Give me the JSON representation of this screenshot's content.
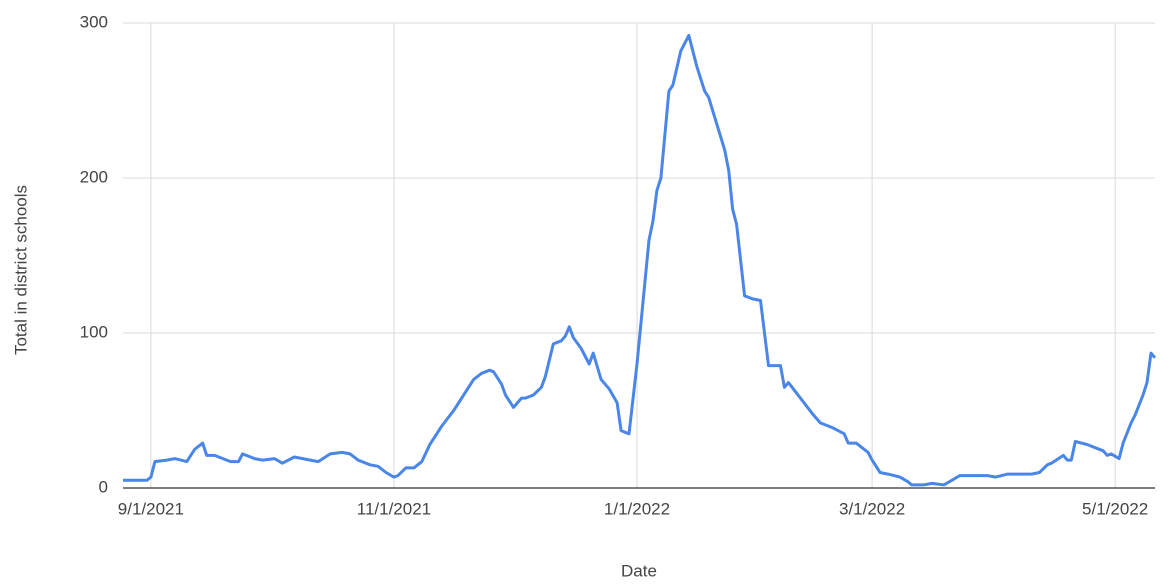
{
  "chart_data": {
    "type": "line",
    "xlabel": "Date",
    "ylabel": "Total in district schools",
    "x": [
      "8/25/2021",
      "8/31/2021",
      "9/1/2021",
      "9/2/2021",
      "9/5/2021",
      "9/7/2021",
      "9/10/2021",
      "9/12/2021",
      "9/14/2021",
      "9/15/2021",
      "9/17/2021",
      "9/21/2021",
      "9/23/2021",
      "9/24/2021",
      "9/27/2021",
      "9/29/2021",
      "10/2/2021",
      "10/4/2021",
      "10/7/2021",
      "10/11/2021",
      "10/13/2021",
      "10/16/2021",
      "10/19/2021",
      "10/21/2021",
      "10/23/2021",
      "10/26/2021",
      "10/28/2021",
      "10/30/2021",
      "11/1/2021",
      "11/2/2021",
      "11/4/2021",
      "11/6/2021",
      "11/8/2021",
      "11/10/2021",
      "11/13/2021",
      "11/16/2021",
      "11/18/2021",
      "11/21/2021",
      "11/23/2021",
      "11/25/2021",
      "11/26/2021",
      "11/28/2021",
      "11/29/2021",
      "12/1/2021",
      "12/3/2021",
      "12/4/2021",
      "12/6/2021",
      "12/8/2021",
      "12/9/2021",
      "12/11/2021",
      "12/13/2021",
      "12/14/2021",
      "12/15/2021",
      "12/16/2021",
      "12/18/2021",
      "12/20/2021",
      "12/21/2021",
      "12/23/2021",
      "12/25/2021",
      "12/27/2021",
      "12/28/2021",
      "12/30/2021",
      "1/1/2022",
      "1/4/2022",
      "1/5/2022",
      "1/6/2022",
      "1/7/2022",
      "1/9/2022",
      "1/10/2022",
      "1/12/2022",
      "1/14/2022",
      "1/16/2022",
      "1/18/2022",
      "1/19/2022",
      "1/21/2022",
      "1/23/2022",
      "1/24/2022",
      "1/25/2022",
      "1/26/2022",
      "1/28/2022",
      "1/30/2022",
      "2/1/2022",
      "2/2/2022",
      "2/3/2022",
      "2/6/2022",
      "2/7/2022",
      "2/8/2022",
      "2/11/2022",
      "2/14/2022",
      "2/16/2022",
      "2/19/2022",
      "2/22/2022",
      "2/23/2022",
      "2/25/2022",
      "2/28/2022",
      "3/1/2022",
      "3/3/2022",
      "3/5/2022",
      "3/8/2022",
      "3/10/2022",
      "3/11/2022",
      "3/14/2022",
      "3/16/2022",
      "3/19/2022",
      "3/21/2022",
      "3/23/2022",
      "3/26/2022",
      "3/28/2022",
      "3/30/2022",
      "4/1/2022",
      "4/4/2022",
      "4/7/2022",
      "4/10/2022",
      "4/12/2022",
      "4/14/2022",
      "4/15/2022",
      "4/18/2022",
      "4/19/2022",
      "4/20/2022",
      "4/21/2022",
      "4/24/2022",
      "4/26/2022",
      "4/28/2022",
      "4/29/2022",
      "4/30/2022",
      "5/2/2022",
      "5/3/2022",
      "5/5/2022",
      "5/6/2022",
      "5/8/2022",
      "5/9/2022",
      "5/10/2022",
      "5/11/2022"
    ],
    "series": [
      {
        "name": "Total in district schools",
        "color": "#4a86e8",
        "values": [
          5,
          5,
          7,
          17,
          18,
          19,
          17,
          25,
          29,
          21,
          21,
          17,
          17,
          22,
          19,
          18,
          19,
          16,
          20,
          18,
          17,
          22,
          23,
          22,
          18,
          15,
          14,
          10,
          7,
          8,
          13,
          13,
          17,
          28,
          40,
          50,
          58,
          70,
          74,
          76,
          75,
          67,
          60,
          52,
          58,
          58,
          60,
          65,
          72,
          93,
          95,
          98,
          104,
          97,
          90,
          80,
          87,
          70,
          64,
          55,
          37,
          35,
          80,
          160,
          172,
          192,
          200,
          256,
          260,
          282,
          292,
          272,
          256,
          252,
          235,
          218,
          205,
          180,
          170,
          124,
          122,
          121,
          100,
          79,
          79,
          65,
          68,
          58,
          48,
          42,
          39,
          35,
          29,
          29,
          23,
          18,
          10,
          9,
          7,
          4,
          2,
          2,
          3,
          2,
          5,
          8,
          8,
          8,
          8,
          7,
          9,
          9,
          9,
          10,
          15,
          16,
          21,
          18,
          18,
          30,
          28,
          26,
          24,
          21,
          22,
          19,
          29,
          42,
          47,
          60,
          68,
          87,
          84
        ]
      }
    ],
    "xlim": [
      "8/25/2021",
      "5/11/2022"
    ],
    "xticks": [
      "9/1/2021",
      "11/1/2021",
      "1/1/2022",
      "3/1/2022",
      "5/1/2022"
    ],
    "ylim": [
      0,
      300
    ],
    "yticks": [
      0,
      100,
      200,
      300
    ],
    "grid": true
  }
}
